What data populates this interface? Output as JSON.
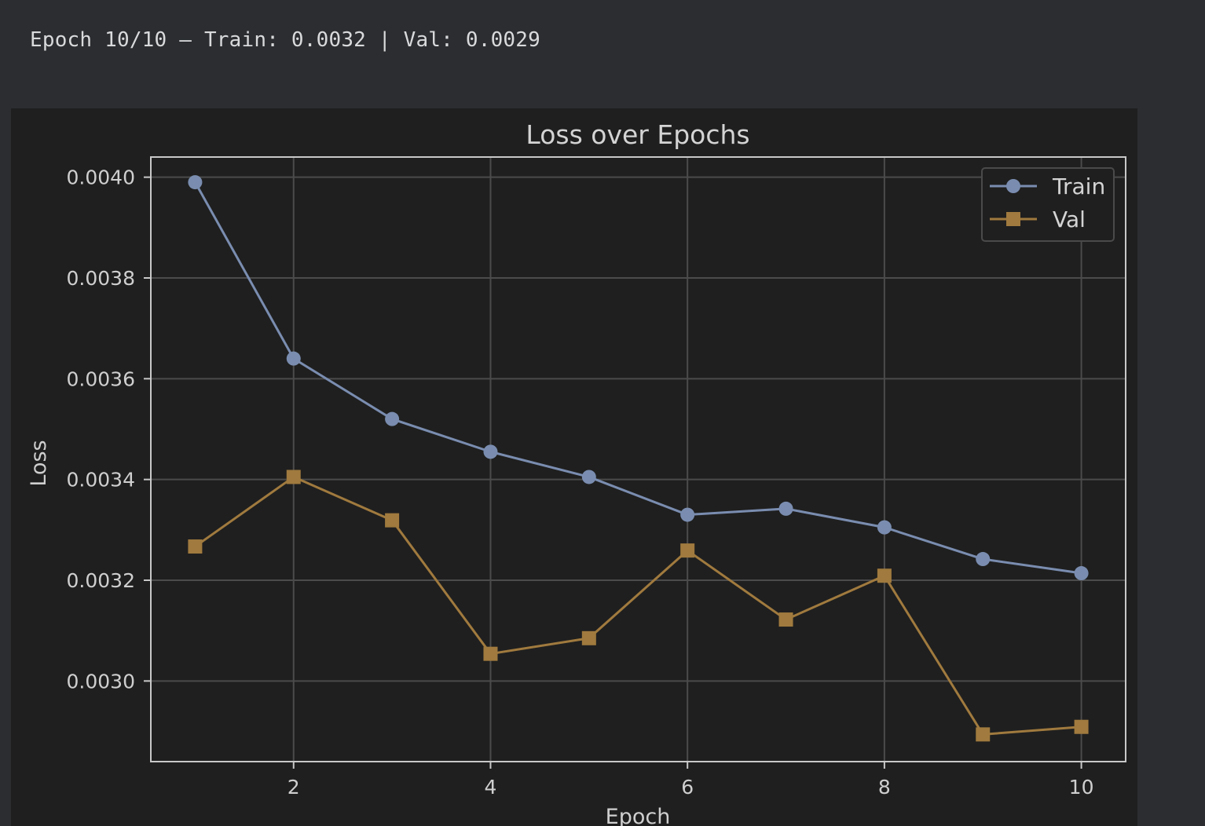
{
  "log": {
    "text": "Epoch 10/10 — Train: 0.0032 | Val: 0.0029"
  },
  "chart_data": {
    "type": "line",
    "title": "Loss over Epochs",
    "xlabel": "Epoch",
    "ylabel": "Loss",
    "x": [
      1,
      2,
      3,
      4,
      5,
      6,
      7,
      8,
      9,
      10
    ],
    "xlim": [
      0.55,
      10.45
    ],
    "ylim": [
      0.00284,
      0.00404
    ],
    "xticks": [
      2,
      4,
      6,
      8,
      10
    ],
    "xtick_labels": [
      "2",
      "4",
      "6",
      "8",
      "10"
    ],
    "yticks": [
      0.003,
      0.0032,
      0.0034,
      0.0036,
      0.0038,
      0.004
    ],
    "ytick_labels": [
      "0.0030",
      "0.0032",
      "0.0034",
      "0.0036",
      "0.0038",
      "0.0040"
    ],
    "grid": true,
    "legend_position": "top-right",
    "series": [
      {
        "name": "Train",
        "marker": "circle",
        "color": "#7a8db0",
        "values": [
          0.00399,
          0.00364,
          0.00352,
          0.003455,
          0.003405,
          0.00333,
          0.003342,
          0.003305,
          0.003242,
          0.003214
        ]
      },
      {
        "name": "Val",
        "marker": "square",
        "color": "#a07a3e",
        "values": [
          0.003267,
          0.003405,
          0.003319,
          0.003054,
          0.003085,
          0.003259,
          0.003122,
          0.003209,
          0.002894,
          0.002909
        ]
      }
    ]
  }
}
